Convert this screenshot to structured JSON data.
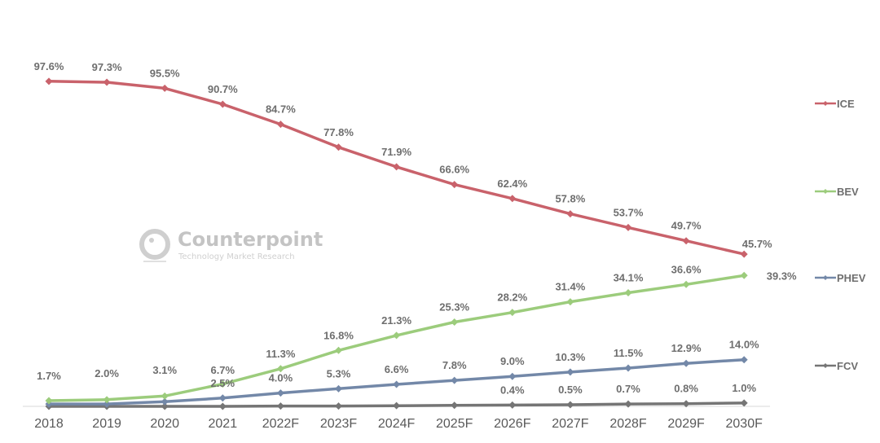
{
  "chart_data": {
    "type": "line",
    "title": "",
    "xlabel": "",
    "ylabel": "",
    "ylim": [
      0,
      100
    ],
    "grid": false,
    "legend_position": "right",
    "categories": [
      "2018",
      "2019",
      "2020",
      "2021",
      "2022F",
      "2023F",
      "2024F",
      "2025F",
      "2026F",
      "2027F",
      "2028F",
      "2029F",
      "2030F"
    ],
    "series": [
      {
        "name": "ICE",
        "color": "#c9626b",
        "values": [
          97.6,
          97.3,
          95.5,
          90.7,
          84.7,
          77.8,
          71.9,
          66.6,
          62.4,
          57.8,
          53.7,
          49.7,
          45.7
        ],
        "labels": [
          "97.6%",
          "97.3%",
          "95.5%",
          "90.7%",
          "84.7%",
          "77.8%",
          "71.9%",
          "66.6%",
          "62.4%",
          "57.8%",
          "53.7%",
          "49.7%",
          "45.7%"
        ]
      },
      {
        "name": "BEV",
        "color": "#9ccc7c",
        "values": [
          1.7,
          2.0,
          3.1,
          6.7,
          11.3,
          16.8,
          21.3,
          25.3,
          28.2,
          31.4,
          34.1,
          36.6,
          39.3
        ],
        "labels": [
          "1.7%",
          "2.0%",
          "3.1%",
          "6.7%",
          "11.3%",
          "16.8%",
          "21.3%",
          "25.3%",
          "28.2%",
          "31.4%",
          "34.1%",
          "36.6%",
          "39.3%"
        ]
      },
      {
        "name": "PHEV",
        "color": "#7388a8",
        "values": [
          0.7,
          0.7,
          1.4,
          2.5,
          4.0,
          5.3,
          6.6,
          7.8,
          9.0,
          10.3,
          11.5,
          12.9,
          14.0
        ],
        "labels": [
          null,
          null,
          null,
          "2.5%",
          "4.0%",
          "5.3%",
          "6.6%",
          "7.8%",
          "9.0%",
          "10.3%",
          "11.5%",
          "12.9%",
          "14.0%"
        ]
      },
      {
        "name": "FCV",
        "color": "#757575",
        "values": [
          0.0,
          0.0,
          0.0,
          0.0,
          0.1,
          0.1,
          0.2,
          0.3,
          0.4,
          0.5,
          0.7,
          0.8,
          1.0
        ],
        "labels": [
          null,
          null,
          null,
          null,
          null,
          null,
          null,
          null,
          "0.4%",
          "0.5%",
          "0.7%",
          "0.8%",
          "1.0%"
        ]
      }
    ]
  },
  "watermark": {
    "brand": "Counterpoint",
    "tagline": "Technology Market Research"
  }
}
